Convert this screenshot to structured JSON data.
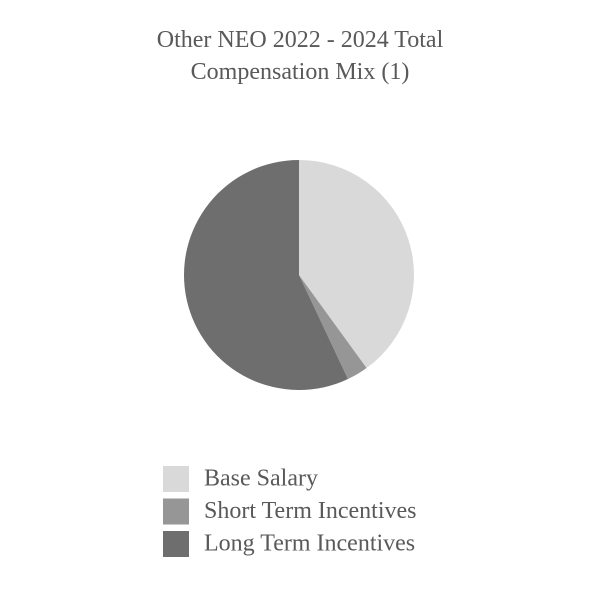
{
  "chart_data": {
    "type": "pie",
    "title": "Other NEO 2022 - 2024 Total Compensation Mix (1)",
    "categories": [
      "Base Salary",
      "Short Term Incentives",
      "Long Term Incentives"
    ],
    "values": [
      40,
      3,
      57
    ],
    "colors": [
      "#d9d9d9",
      "#969696",
      "#6e6e6e"
    ],
    "legend": "bottom"
  }
}
